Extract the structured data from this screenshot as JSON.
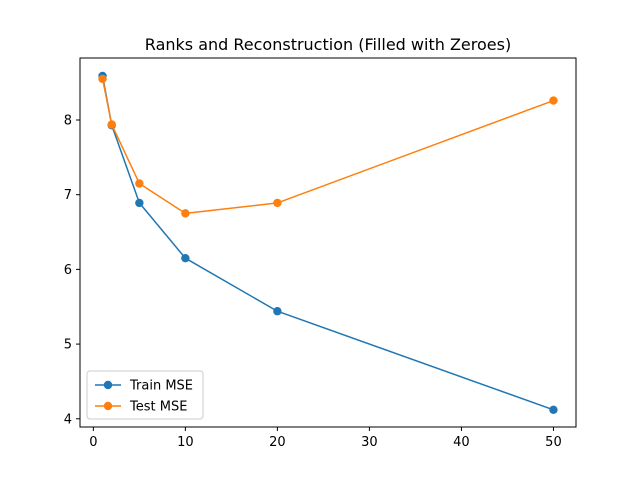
{
  "chart_data": {
    "type": "line",
    "title": "Ranks and Reconstruction (Filled with Zeroes)",
    "xlabel": "",
    "ylabel": "",
    "x": [
      1,
      2,
      5,
      10,
      20,
      50
    ],
    "xlim": [
      -1.45,
      52.45
    ],
    "ylim": [
      3.89,
      8.83
    ],
    "xticks": [
      0,
      10,
      20,
      30,
      40,
      50
    ],
    "yticks": [
      4,
      5,
      6,
      7,
      8
    ],
    "grid": false,
    "legend": "lower-left",
    "series": [
      {
        "name": "Train MSE",
        "color": "#1f77b4",
        "values": [
          8.59,
          7.93,
          6.89,
          6.15,
          5.44,
          4.12
        ]
      },
      {
        "name": "Test MSE",
        "color": "#ff7f0e",
        "values": [
          8.55,
          7.94,
          7.15,
          6.75,
          6.89,
          8.26
        ]
      }
    ]
  }
}
